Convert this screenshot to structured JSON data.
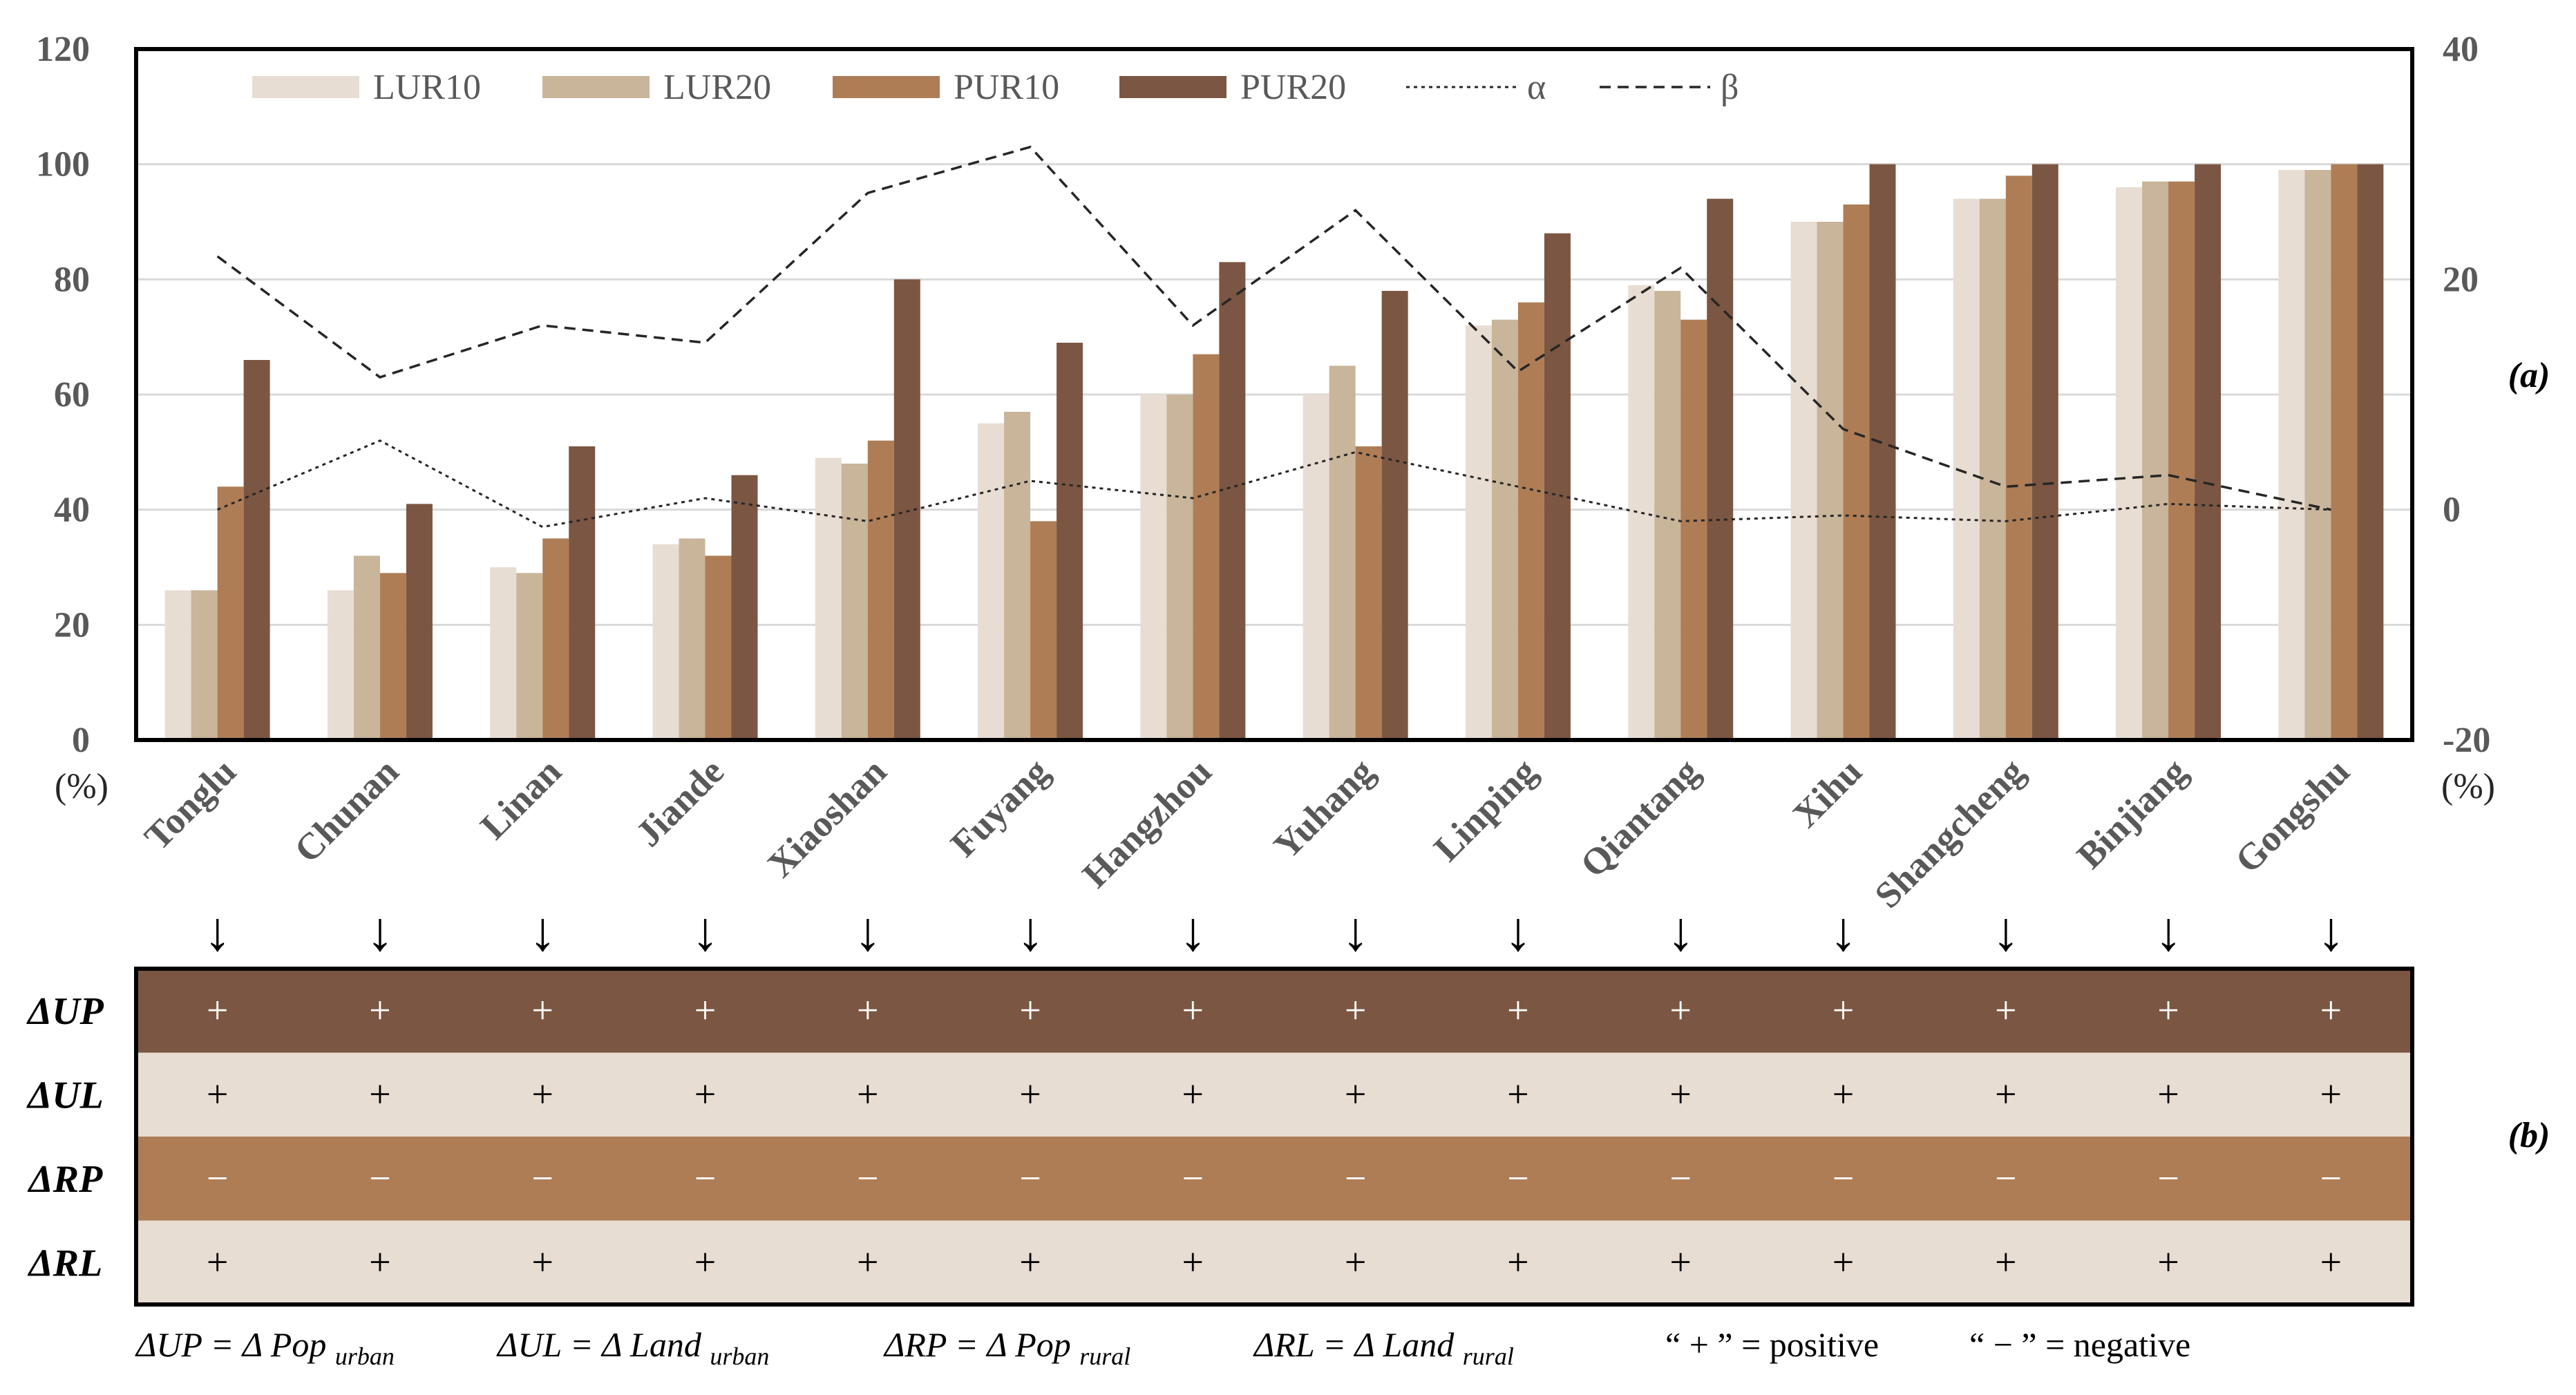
{
  "chart_data": [
    {
      "panel_label": "(a)",
      "type": "bar",
      "categories": [
        "Tonglu",
        "Chunan",
        "Linan",
        "Jiande",
        "Xiaoshan",
        "Fuyang",
        "Hangzhou",
        "Yuhang",
        "Linping",
        "Qiantang",
        "Xihu",
        "Shangcheng",
        "Binjiang",
        "Gongshu"
      ],
      "series": [
        {
          "name": "LUR10",
          "color": "#e8ddd2",
          "values": [
            26,
            26,
            30,
            34,
            49,
            55,
            60,
            60,
            72,
            79,
            90,
            94,
            96,
            99
          ]
        },
        {
          "name": "LUR20",
          "color": "#c8b59a",
          "values": [
            26,
            32,
            29,
            35,
            48,
            57,
            60,
            65,
            73,
            78,
            90,
            94,
            97,
            99
          ]
        },
        {
          "name": "PUR10",
          "color": "#ae7d56",
          "values": [
            44,
            29,
            35,
            32,
            52,
            38,
            67,
            51,
            76,
            73,
            93,
            98,
            97,
            100
          ]
        },
        {
          "name": "PUR20",
          "color": "#7b5642",
          "values": [
            66,
            41,
            51,
            46,
            80,
            69,
            83,
            78,
            88,
            94,
            100,
            100,
            100,
            100
          ]
        }
      ],
      "lines": [
        {
          "name": "α",
          "axis": "right",
          "style": "dotted",
          "values": [
            0,
            6,
            -1.5,
            1,
            -1,
            2.5,
            1,
            5,
            2,
            -1,
            -0.5,
            -1,
            0.5,
            0
          ]
        },
        {
          "name": "β",
          "axis": "right",
          "style": "dashed",
          "values": [
            22,
            11.5,
            16,
            14.5,
            27.5,
            31.5,
            16,
            26,
            12,
            21,
            7,
            2,
            3,
            0
          ]
        }
      ],
      "left_axis": {
        "ylim": [
          0,
          120
        ],
        "ticks": [
          "0",
          "20",
          "40",
          "60",
          "80",
          "100",
          "120"
        ],
        "unit": "(%)"
      },
      "right_axis": {
        "ylim": [
          -20,
          40
        ],
        "ticks": [
          "-20",
          "0",
          "20",
          "40"
        ],
        "unit": "(%)"
      },
      "grid": true,
      "legend": "top-left"
    },
    {
      "panel_label": "(b)",
      "type": "table",
      "rows": [
        {
          "label_main": "ΔUP",
          "signs": [
            "+",
            "+",
            "+",
            "+",
            "+",
            "+",
            "+",
            "+",
            "+",
            "+",
            "+",
            "+",
            "+",
            "+"
          ],
          "fill": "#7b5642",
          "sign_color": "#ffffff"
        },
        {
          "label_main": "ΔUL",
          "signs": [
            "+",
            "+",
            "+",
            "+",
            "+",
            "+",
            "+",
            "+",
            "+",
            "+",
            "+",
            "+",
            "+",
            "+"
          ],
          "fill": "#e8ddd2",
          "sign_color": "#000000"
        },
        {
          "label_main": "ΔRP",
          "signs": [
            "−",
            "−",
            "−",
            "−",
            "−",
            "−",
            "−",
            "−",
            "−",
            "−",
            "−",
            "−",
            "−",
            "−"
          ],
          "fill": "#ae7d56",
          "sign_color": "#ffffff"
        },
        {
          "label_main": "ΔRL",
          "signs": [
            "+",
            "+",
            "+",
            "+",
            "+",
            "+",
            "+",
            "+",
            "+",
            "+",
            "+",
            "+",
            "+",
            "+"
          ],
          "fill": "#e8ddd2",
          "sign_color": "#000000"
        }
      ]
    }
  ],
  "footnote": {
    "defs": [
      {
        "lhs": "ΔUP",
        "eq": " = Δ Pop ",
        "sub": "urban"
      },
      {
        "lhs": "ΔUL",
        "eq": " = Δ Land ",
        "sub": "urban"
      },
      {
        "lhs": "ΔRP",
        "eq": " = Δ Pop ",
        "sub": "rural"
      },
      {
        "lhs": "ΔRL",
        "eq": " = Δ Land ",
        "sub": "rural"
      }
    ],
    "positive": "“ + ” = positive",
    "negative": "“ − ” = negative"
  },
  "arrow_glyph": "↓"
}
